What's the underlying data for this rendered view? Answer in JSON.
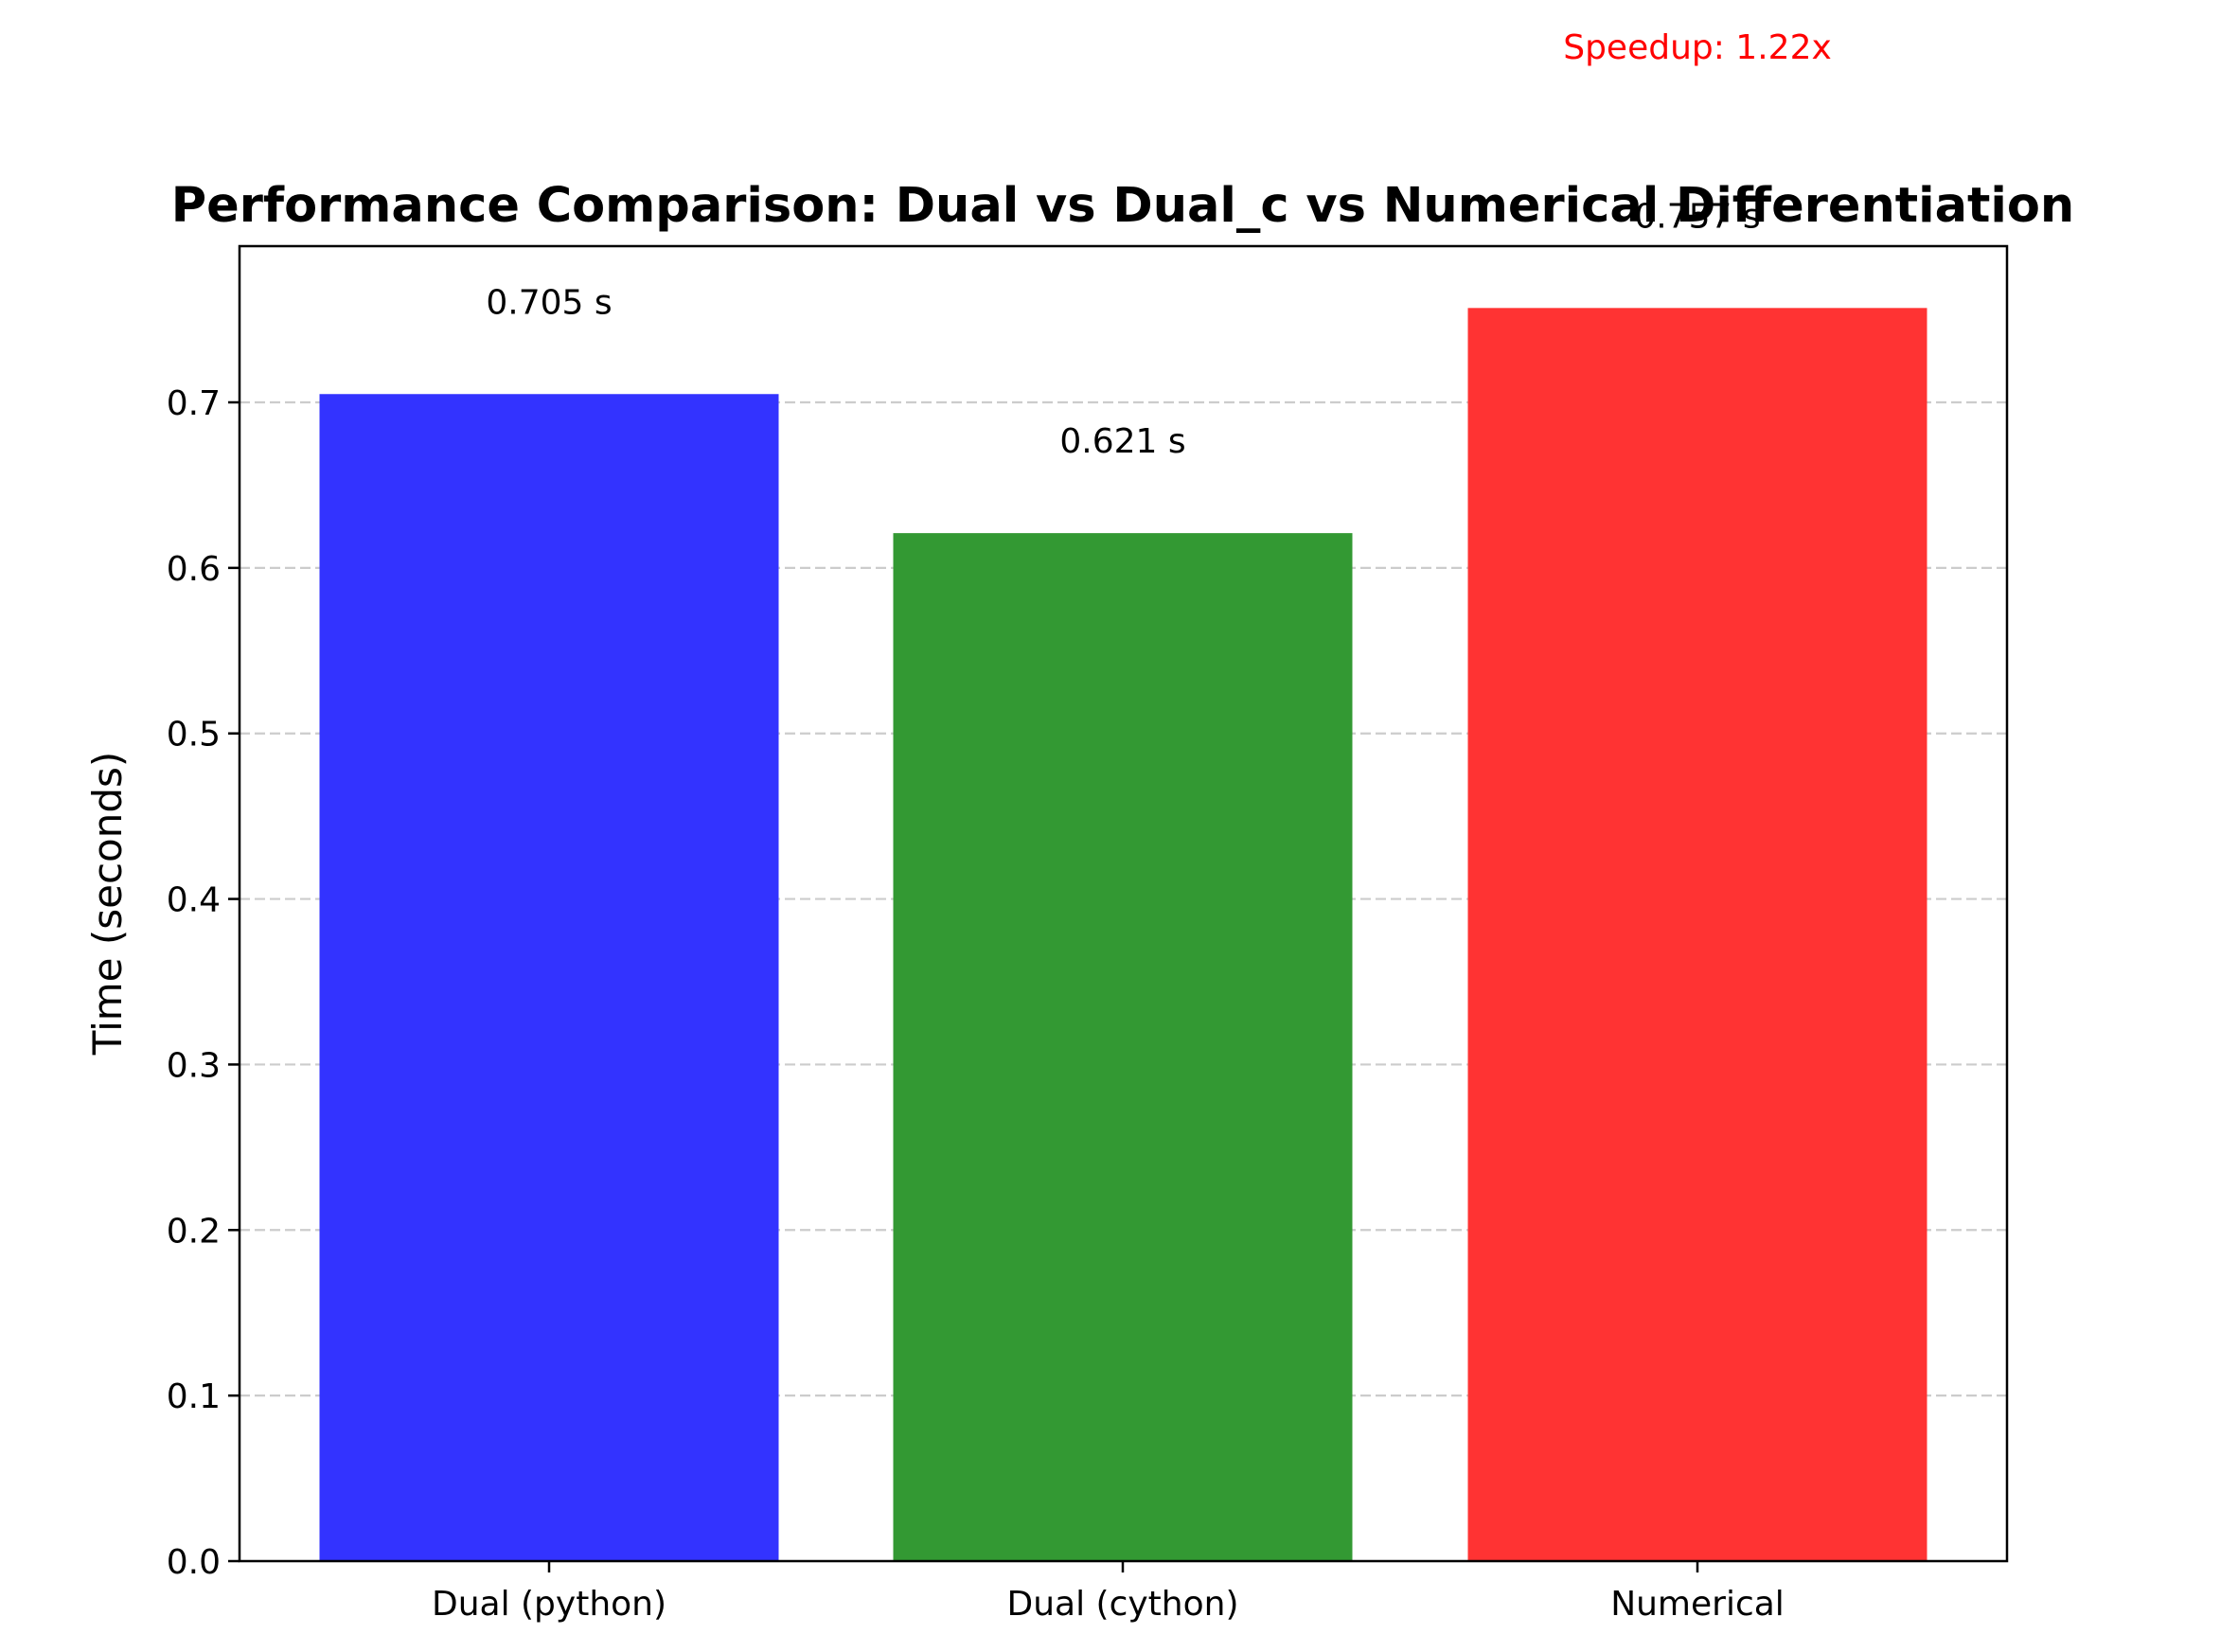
{
  "chart_data": {
    "type": "bar",
    "title": "Performance Comparison: Dual vs Dual_c vs Numerical Differentiation",
    "ylabel": "Time (seconds)",
    "xlabel": "",
    "categories": [
      "Dual (python)",
      "Dual (cython)",
      "Numerical"
    ],
    "values": [
      0.705,
      0.621,
      0.757
    ],
    "value_labels": [
      "0.705 s",
      "0.621 s",
      "0.757 s"
    ],
    "colors": [
      "#3333ff",
      "#339933",
      "#ff3333"
    ],
    "ylim": [
      0,
      0.795
    ],
    "yticks": [
      0.0,
      0.1,
      0.2,
      0.3,
      0.4,
      0.5,
      0.6,
      0.7
    ],
    "ytick_labels": [
      "0.0",
      "0.1",
      "0.2",
      "0.3",
      "0.4",
      "0.5",
      "0.6",
      "0.7"
    ],
    "grid": "y-dashed",
    "annotation": {
      "text": "Speedup: 1.22x",
      "color": "#ff0000"
    }
  }
}
